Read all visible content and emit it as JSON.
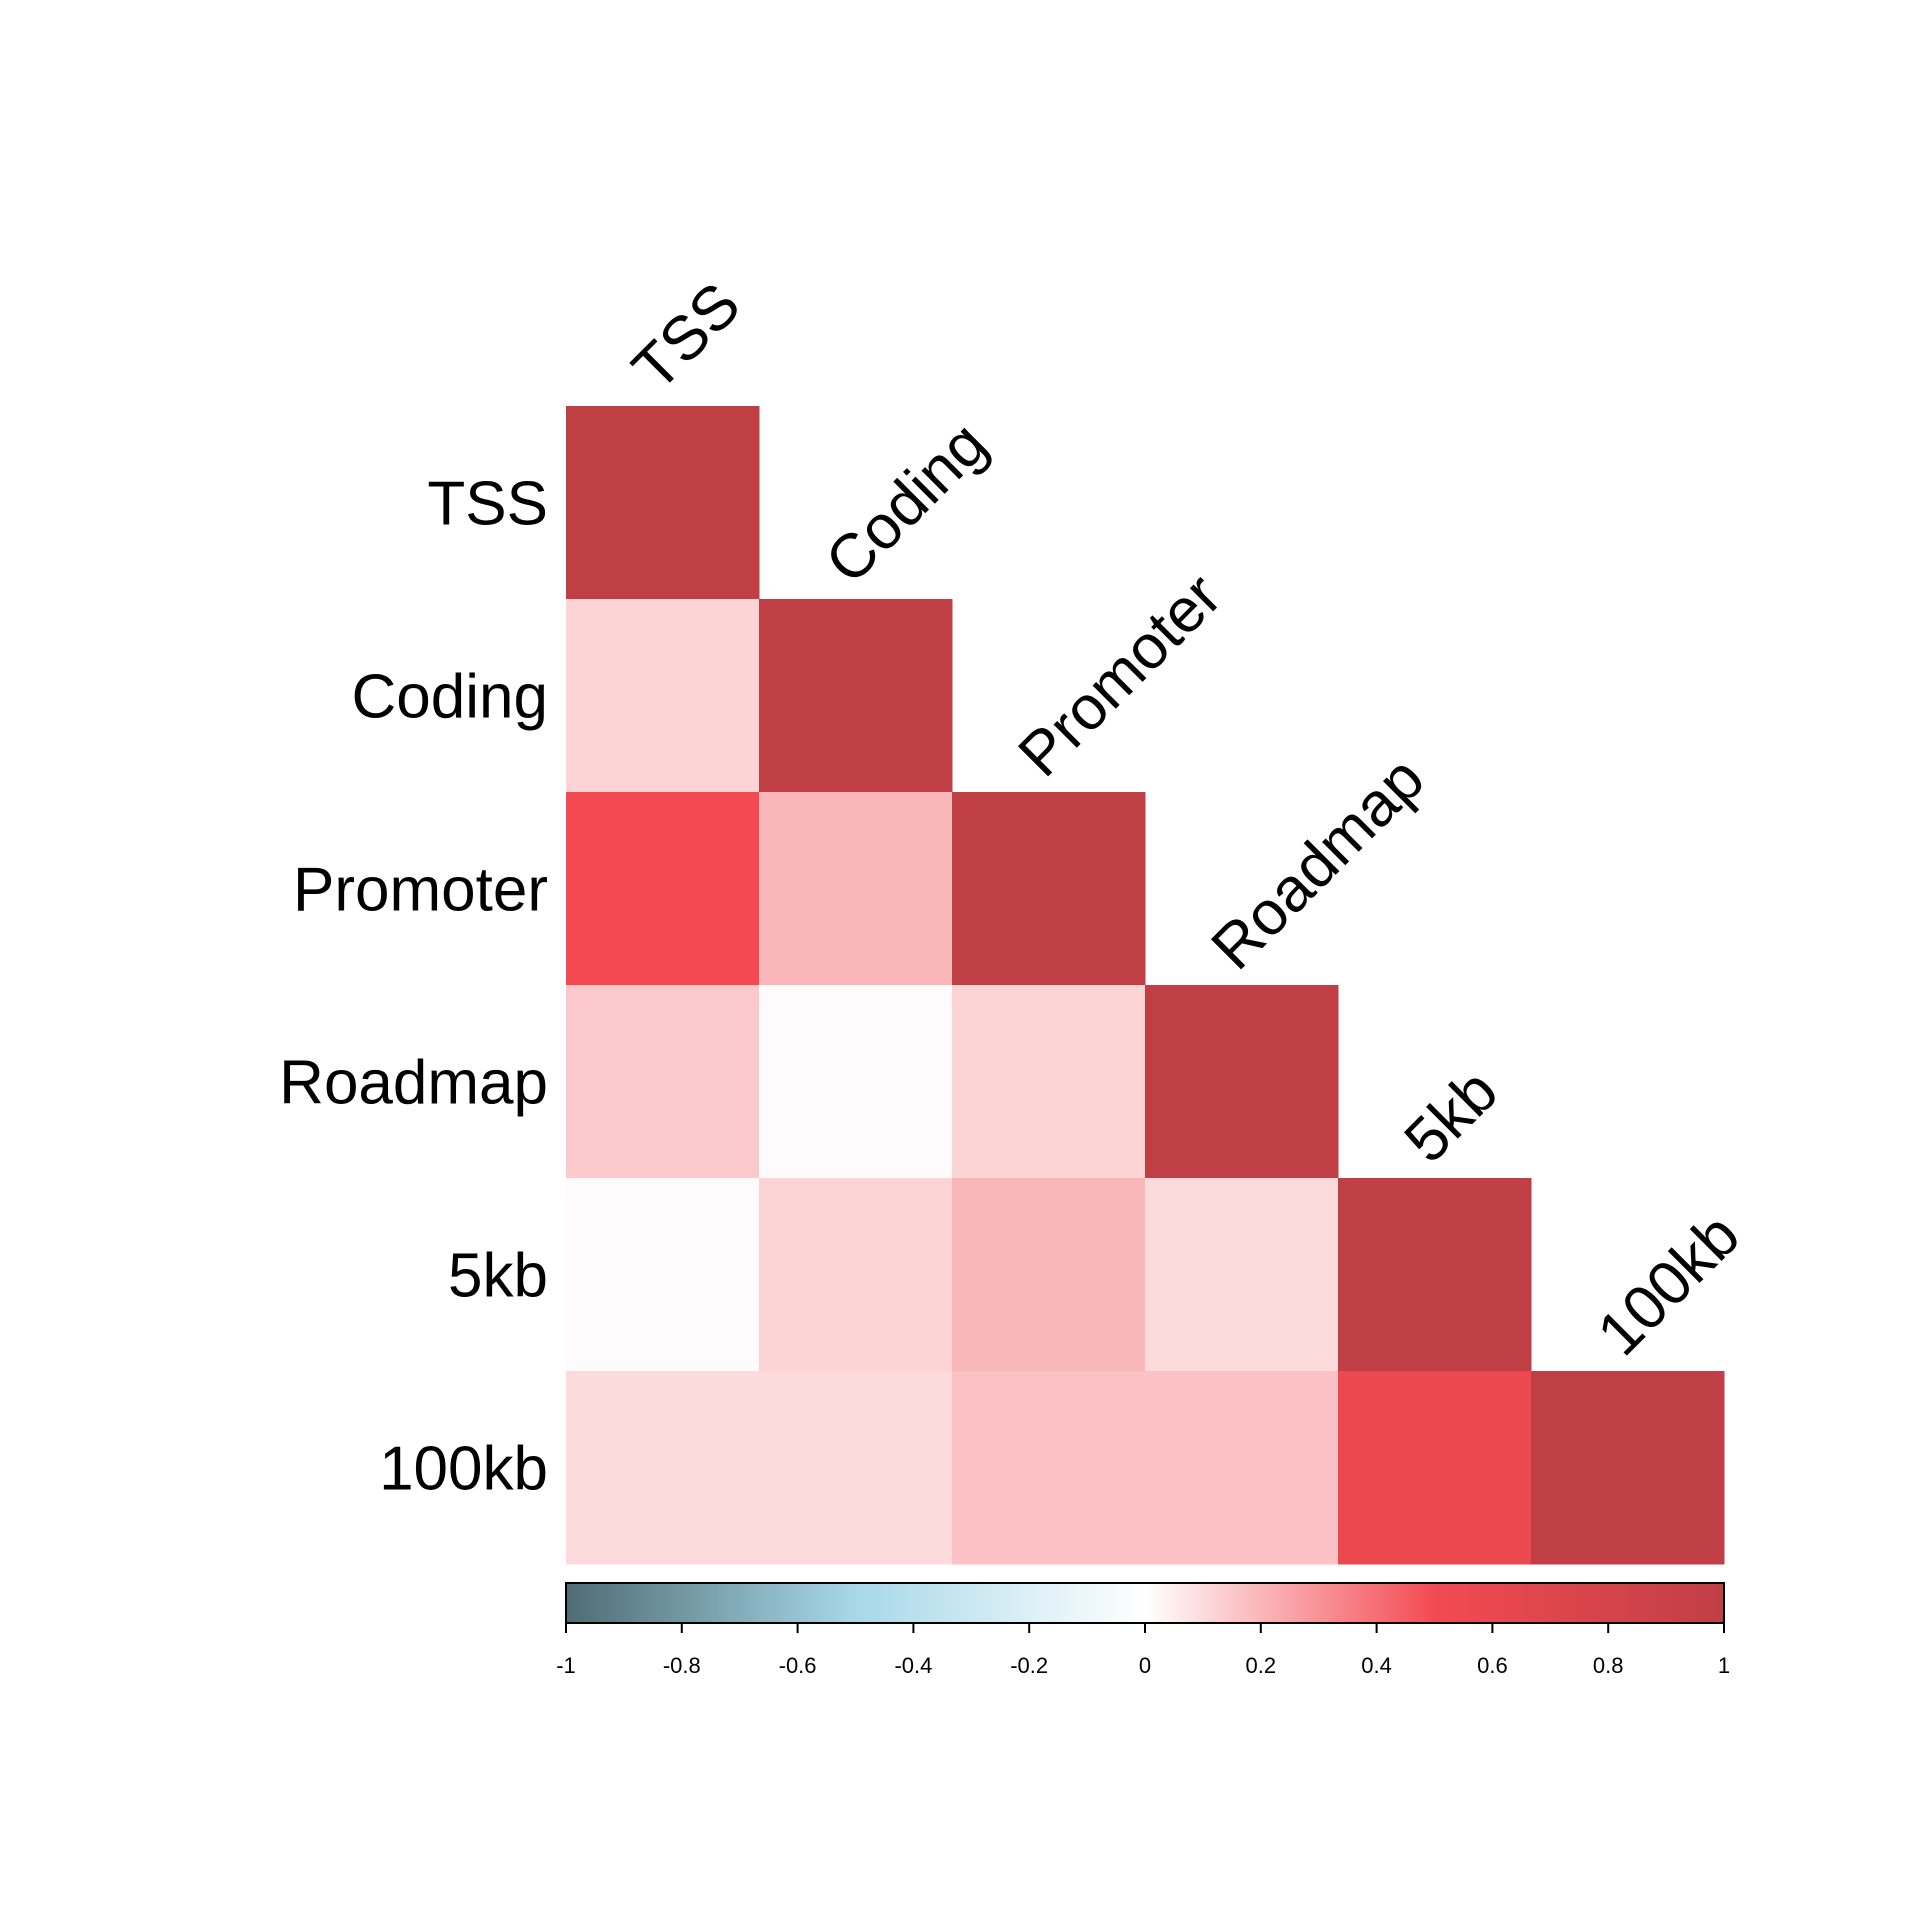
{
  "chart_data": {
    "type": "heatmap",
    "title": "",
    "xlabel": "",
    "ylabel": "",
    "variables": [
      "TSS",
      "Coding",
      "Promoter",
      "Roadmap",
      "5kb",
      "100kb"
    ],
    "layout": "lower-triangle",
    "matrix": [
      [
        1.0
      ],
      [
        0.12,
        1.0
      ],
      [
        0.5,
        0.2,
        1.0
      ],
      [
        0.15,
        0.01,
        0.12,
        1.0
      ],
      [
        0.01,
        0.12,
        0.2,
        0.1,
        1.0
      ],
      [
        0.1,
        0.1,
        0.17,
        0.17,
        0.58,
        1.0
      ]
    ],
    "colorbar": {
      "range": [
        -1,
        1
      ],
      "ticks": [
        "-1",
        "-0.8",
        "-0.6",
        "-0.4",
        "-0.2",
        "0",
        "0.2",
        "0.4",
        "0.6",
        "0.8",
        "1"
      ],
      "stops": [
        {
          "value": -1.0,
          "color": "#4f6c74"
        },
        {
          "value": -0.5,
          "color": "#a7d8e9"
        },
        {
          "value": 0.0,
          "color": "#ffffff"
        },
        {
          "value": 0.5,
          "color": "#f34a52"
        },
        {
          "value": 1.0,
          "color": "#c03f45"
        }
      ]
    },
    "grid": false,
    "legend": "bottom"
  }
}
